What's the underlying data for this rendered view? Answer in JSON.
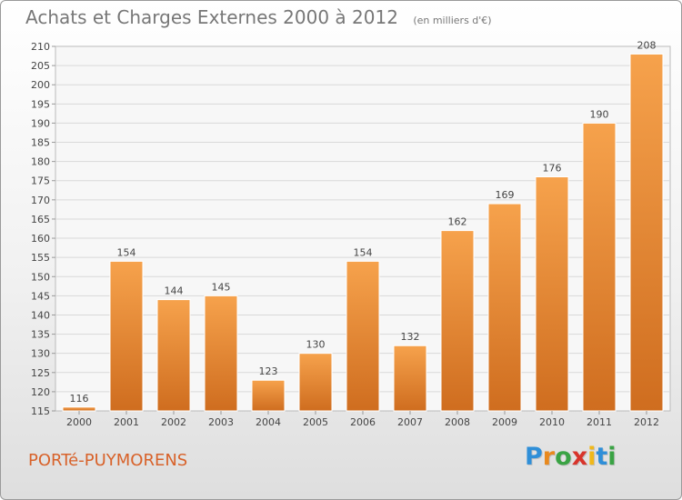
{
  "header": {
    "title": "Achats et Charges Externes 2000 à 2012",
    "unit": "(en milliers d'€)"
  },
  "footer": {
    "town": "PORTé-PUYMORENS",
    "logo_letters": [
      "P",
      "r",
      "o",
      "x",
      "i",
      "t",
      "i"
    ],
    "logo_colors": [
      "#2f8fd8",
      "#e8891e",
      "#3aa344",
      "#d8342b",
      "#f0b81a",
      "#2f8fd8",
      "#3aa344"
    ]
  },
  "colors": {
    "bar_top": "#f6a24c",
    "bar_bottom": "#cf6d1f",
    "grid": "#d9d9d9",
    "axis_text": "#444444"
  },
  "chart_data": {
    "type": "bar",
    "title": "Achats et Charges Externes 2000 à 2012",
    "xlabel": "",
    "ylabel": "",
    "categories": [
      "2000",
      "2001",
      "2002",
      "2003",
      "2004",
      "2005",
      "2006",
      "2007",
      "2008",
      "2009",
      "2010",
      "2011",
      "2012"
    ],
    "values": [
      116,
      154,
      144,
      145,
      123,
      130,
      154,
      132,
      162,
      169,
      176,
      190,
      208
    ],
    "ylim": [
      115,
      210
    ],
    "yticks": [
      115,
      120,
      125,
      130,
      135,
      140,
      145,
      150,
      155,
      160,
      165,
      170,
      175,
      180,
      185,
      190,
      195,
      200,
      205,
      210
    ],
    "grid": true,
    "data_labels": true
  }
}
